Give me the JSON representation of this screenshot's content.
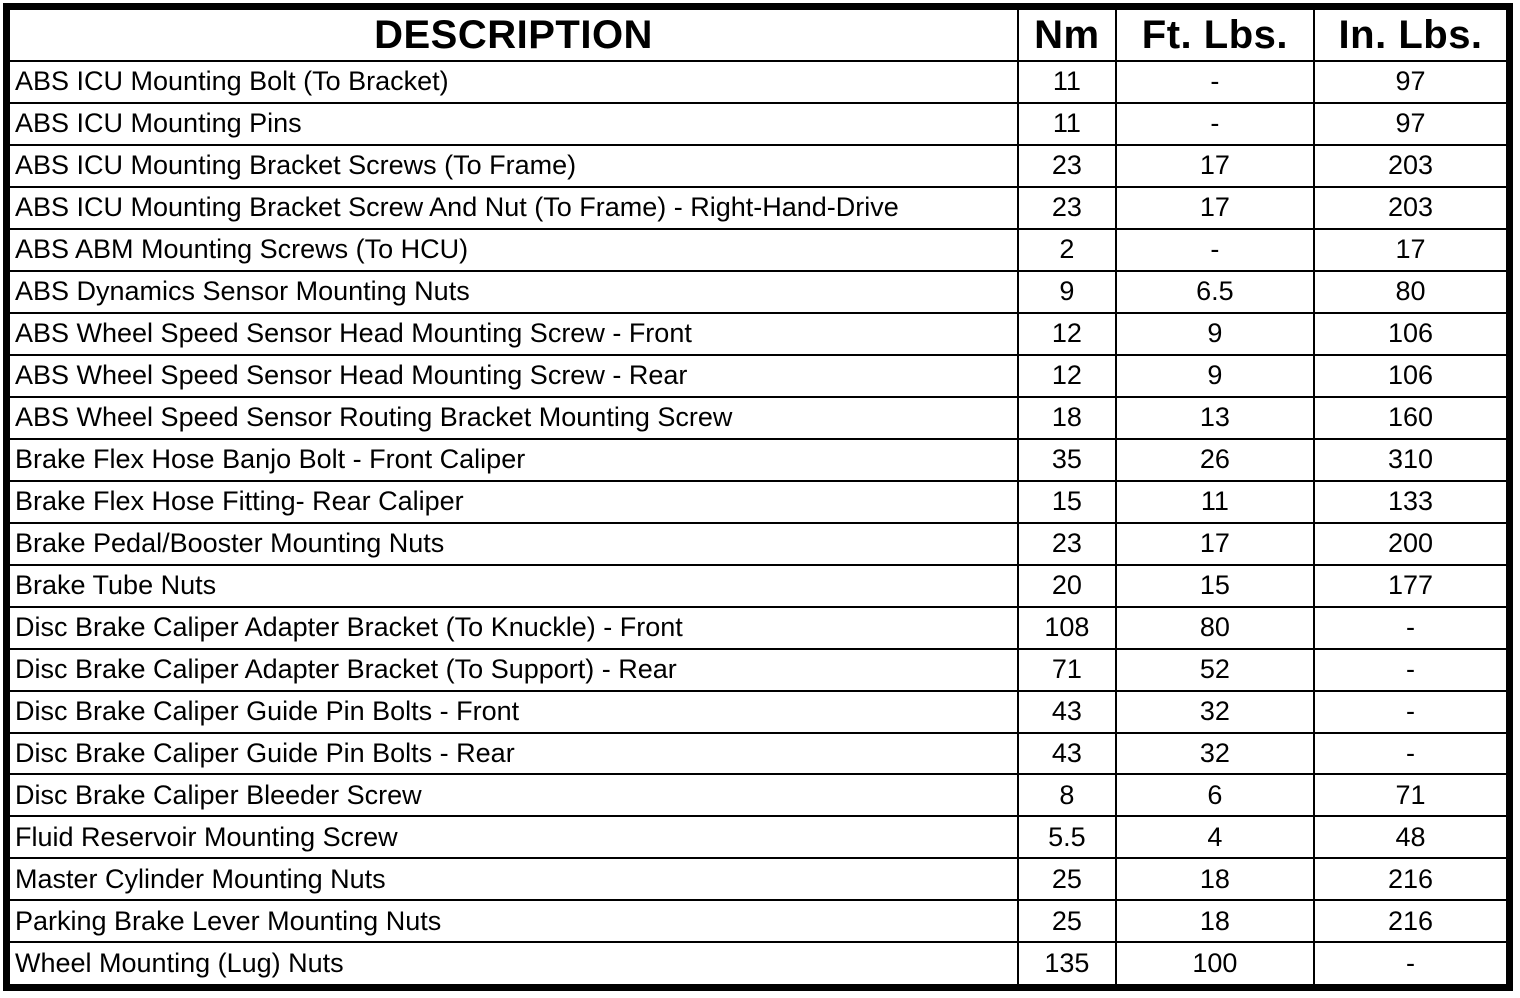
{
  "colors": {
    "border": "#000000",
    "background": "#ffffff",
    "text": "#000000"
  },
  "table": {
    "columns": {
      "description": "DESCRIPTION",
      "nm": "Nm",
      "ft_lbs": "Ft. Lbs.",
      "in_lbs": "In. Lbs."
    },
    "rows": [
      {
        "description": "ABS ICU Mounting Bolt (To Bracket)",
        "nm": "11",
        "ft_lbs": "-",
        "in_lbs": "97"
      },
      {
        "description": "ABS ICU Mounting Pins",
        "nm": "11",
        "ft_lbs": "-",
        "in_lbs": "97"
      },
      {
        "description": "ABS ICU Mounting Bracket Screws (To Frame)",
        "nm": "23",
        "ft_lbs": "17",
        "in_lbs": "203"
      },
      {
        "description": "ABS ICU Mounting Bracket Screw And Nut (To Frame) - Right-Hand-Drive",
        "nm": "23",
        "ft_lbs": "17",
        "in_lbs": "203"
      },
      {
        "description": "ABS ABM Mounting Screws (To HCU)",
        "nm": "2",
        "ft_lbs": "-",
        "in_lbs": "17"
      },
      {
        "description": "ABS Dynamics Sensor Mounting Nuts",
        "nm": "9",
        "ft_lbs": "6.5",
        "in_lbs": "80"
      },
      {
        "description": "ABS Wheel Speed Sensor Head Mounting Screw - Front",
        "nm": "12",
        "ft_lbs": "9",
        "in_lbs": "106"
      },
      {
        "description": "ABS Wheel Speed Sensor Head Mounting Screw - Rear",
        "nm": "12",
        "ft_lbs": "9",
        "in_lbs": "106"
      },
      {
        "description": "ABS Wheel Speed Sensor Routing Bracket Mounting Screw",
        "nm": "18",
        "ft_lbs": "13",
        "in_lbs": "160"
      },
      {
        "description": "Brake Flex Hose Banjo Bolt - Front Caliper",
        "nm": "35",
        "ft_lbs": "26",
        "in_lbs": "310"
      },
      {
        "description": "Brake Flex Hose Fitting- Rear Caliper",
        "nm": "15",
        "ft_lbs": "11",
        "in_lbs": "133"
      },
      {
        "description": "Brake Pedal/Booster Mounting Nuts",
        "nm": "23",
        "ft_lbs": "17",
        "in_lbs": "200"
      },
      {
        "description": "Brake Tube Nuts",
        "nm": "20",
        "ft_lbs": "15",
        "in_lbs": "177"
      },
      {
        "description": "Disc Brake Caliper Adapter Bracket (To Knuckle) - Front",
        "nm": "108",
        "ft_lbs": "80",
        "in_lbs": "-"
      },
      {
        "description": "Disc Brake Caliper Adapter Bracket (To Support) - Rear",
        "nm": "71",
        "ft_lbs": "52",
        "in_lbs": "-"
      },
      {
        "description": "Disc Brake Caliper Guide Pin Bolts - Front",
        "nm": "43",
        "ft_lbs": "32",
        "in_lbs": "-"
      },
      {
        "description": "Disc Brake Caliper Guide Pin Bolts - Rear",
        "nm": "43",
        "ft_lbs": "32",
        "in_lbs": "-"
      },
      {
        "description": "Disc Brake Caliper Bleeder Screw",
        "nm": "8",
        "ft_lbs": "6",
        "in_lbs": "71"
      },
      {
        "description": "Fluid Reservoir Mounting Screw",
        "nm": "5.5",
        "ft_lbs": "4",
        "in_lbs": "48"
      },
      {
        "description": "Master Cylinder Mounting Nuts",
        "nm": "25",
        "ft_lbs": "18",
        "in_lbs": "216"
      },
      {
        "description": "Parking Brake Lever Mounting Nuts",
        "nm": "25",
        "ft_lbs": "18",
        "in_lbs": "216"
      },
      {
        "description": "Wheel Mounting (Lug) Nuts",
        "nm": "135",
        "ft_lbs": "100",
        "in_lbs": "-"
      }
    ]
  }
}
